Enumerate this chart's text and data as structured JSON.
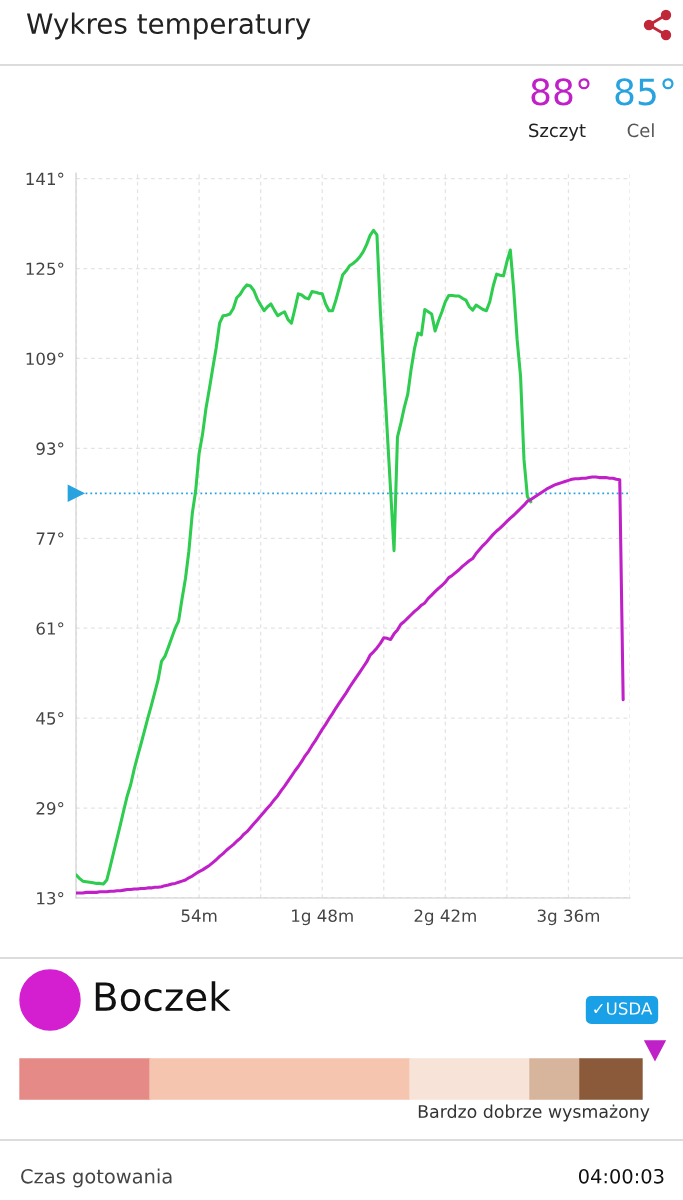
{
  "chart_data": {
    "type": "line",
    "title": "Wykres temperatury",
    "categories": [
      null,
      null,
      null,
      null,
      null,
      null,
      null,
      null,
      null,
      null,
      null,
      null,
      null,
      null,
      null,
      null,
      null,
      null,
      null,
      null,
      null,
      null,
      null,
      null,
      null,
      null,
      null,
      null,
      null,
      null,
      null,
      null,
      null,
      null,
      null,
      null,
      "54m",
      null,
      null,
      null,
      null,
      null,
      null,
      null,
      null,
      null,
      null,
      null,
      null,
      null,
      null,
      null,
      null,
      null,
      null,
      null,
      null,
      null,
      null,
      null,
      null,
      null,
      null,
      null,
      null,
      null,
      null,
      null,
      null,
      null,
      null,
      null,
      "1g 48m",
      null,
      null,
      null,
      null,
      null,
      null,
      null,
      null,
      null,
      null,
      null,
      null,
      null,
      null,
      null,
      null,
      null,
      null,
      null,
      null,
      null,
      null,
      null,
      null,
      null,
      null,
      null,
      null,
      null,
      null,
      null,
      null,
      null,
      null,
      null,
      "2g 42m",
      null,
      null,
      null,
      null,
      null,
      null,
      null,
      null,
      null,
      null,
      null,
      null,
      null,
      null,
      null,
      null,
      null,
      null,
      null,
      null,
      null,
      null,
      null,
      null,
      null,
      null,
      null,
      null,
      null,
      null,
      null,
      null,
      null,
      null,
      null,
      "3g 36m",
      null,
      null,
      null,
      null,
      null,
      null,
      null,
      null,
      null,
      null,
      null,
      null,
      null,
      null,
      null,
      null,
      null,
      null
    ],
    "series": [
      {
        "color": "#2ecc4f",
        "values": [
          17.1,
          16.5,
          16.0,
          15.9,
          15.8,
          15.7,
          15.6,
          15.6,
          15.5,
          16.2,
          18.6,
          21.1,
          23.6,
          26.1,
          28.7,
          31.2,
          33.2,
          35.9,
          38.2,
          40.4,
          42.7,
          45.0,
          47.2,
          49.5,
          51.8,
          55.1,
          56.0,
          57.6,
          59.3,
          61.0,
          62.3,
          66.2,
          69.8,
          74.7,
          81.4,
          85.5,
          92.1,
          95.5,
          100.1,
          103.6,
          107.3,
          110.9,
          115.3,
          116.6,
          116.7,
          116.9,
          117.9,
          119.8,
          120.4,
          121.4,
          122.1,
          121.9,
          121.1,
          119.6,
          118.5,
          117.5,
          118.2,
          118.7,
          117.6,
          116.6,
          117.0,
          117.3,
          115.9,
          115.3,
          117.8,
          120.5,
          120.3,
          119.8,
          119.6,
          120.9,
          120.8,
          120.6,
          120.5,
          118.7,
          117.5,
          117.5,
          119.4,
          121.6,
          123.9,
          124.6,
          125.5,
          125.9,
          126.4,
          127.1,
          128.0,
          129.3,
          130.9,
          131.8,
          131.0,
          117.5,
          106.8,
          96.1,
          85.5,
          74.8,
          95.0,
          97.5,
          100.3,
          102.6,
          107.1,
          110.8,
          113.5,
          113.2,
          117.7,
          117.3,
          116.9,
          113.9,
          115.7,
          117.3,
          119.1,
          120.2,
          120.2,
          120.1,
          120.1,
          119.7,
          119.4,
          118.2,
          117.6,
          118.5,
          118.1,
          117.7,
          117.5,
          119.1,
          121.9,
          124.0,
          123.8,
          123.7,
          126.2,
          128.3,
          121.2,
          112.3,
          105.8,
          91.0,
          84.4,
          83.5,
          null,
          null,
          null,
          null,
          null,
          null,
          null,
          null,
          null,
          null,
          null,
          null,
          null,
          null,
          null,
          null,
          null,
          null,
          null,
          null,
          null,
          null,
          null,
          null,
          null,
          null,
          null,
          null,
          null
        ]
      },
      {
        "color": "#c020c8",
        "values": [
          13.9,
          13.9,
          13.9,
          14.0,
          14.0,
          14.0,
          14.0,
          14.1,
          14.1,
          14.1,
          14.2,
          14.2,
          14.3,
          14.3,
          14.4,
          14.5,
          14.5,
          14.6,
          14.6,
          14.7,
          14.7,
          14.8,
          14.8,
          14.9,
          14.9,
          15.0,
          15.2,
          15.3,
          15.5,
          15.6,
          15.8,
          16.0,
          16.2,
          16.6,
          16.9,
          17.3,
          17.7,
          18.0,
          18.4,
          18.8,
          19.3,
          19.8,
          20.4,
          20.9,
          21.5,
          22.0,
          22.5,
          23.1,
          23.6,
          24.3,
          24.8,
          25.5,
          26.2,
          26.9,
          27.6,
          28.3,
          29.0,
          29.7,
          30.5,
          31.2,
          32.1,
          32.9,
          33.8,
          34.7,
          35.6,
          36.4,
          37.3,
          38.3,
          39.1,
          40.1,
          41.0,
          42.0,
          43.0,
          43.9,
          44.9,
          45.8,
          46.8,
          47.7,
          48.6,
          49.5,
          50.5,
          51.4,
          52.3,
          53.2,
          54.1,
          55.0,
          56.2,
          56.8,
          57.5,
          58.3,
          59.3,
          59.2,
          59.0,
          60.0,
          60.7,
          61.7,
          62.2,
          62.8,
          63.4,
          64.0,
          64.5,
          65.1,
          65.5,
          66.3,
          66.9,
          67.5,
          68.1,
          68.6,
          69.2,
          70.0,
          70.4,
          70.9,
          71.4,
          72.0,
          72.5,
          73.0,
          73.4,
          74.3,
          75.0,
          75.7,
          76.3,
          77.0,
          77.7,
          78.3,
          78.8,
          79.4,
          80.0,
          80.6,
          81.1,
          81.7,
          82.3,
          82.9,
          83.6,
          83.9,
          84.3,
          84.7,
          85.1,
          85.5,
          85.9,
          86.2,
          86.5,
          86.7,
          86.9,
          87.1,
          87.3,
          87.5,
          87.6,
          87.6,
          87.7,
          87.7,
          87.8,
          87.9,
          87.9,
          87.8,
          87.8,
          87.8,
          87.7,
          87.7,
          87.5,
          87.4,
          48.3,
          null,
          null
        ]
      }
    ],
    "ylim": [
      13,
      142
    ],
    "yticks": [
      {
        "value": 13,
        "label": "13°"
      },
      {
        "value": 29,
        "label": "29°"
      },
      {
        "value": 45,
        "label": "45°"
      },
      {
        "value": 61,
        "label": "61°"
      },
      {
        "value": 77,
        "label": "77°"
      },
      {
        "value": 93,
        "label": "93°"
      },
      {
        "value": 109,
        "label": "109°"
      },
      {
        "value": 125,
        "label": "125°"
      },
      {
        "value": 141,
        "label": "141°"
      }
    ],
    "ref_lines": [
      {
        "axis": "y",
        "value": 85,
        "color": "#29a3e0",
        "line_style": "dotted"
      }
    ],
    "grid": true,
    "line_style": "solid",
    "annotations": [
      "88°",
      "Szczyt",
      "85°",
      "Cel",
      "Boczek",
      "✓USDA",
      "Bardzo dobrze wysmażony",
      "Czas gotowania",
      "04:00:03"
    ]
  }
}
